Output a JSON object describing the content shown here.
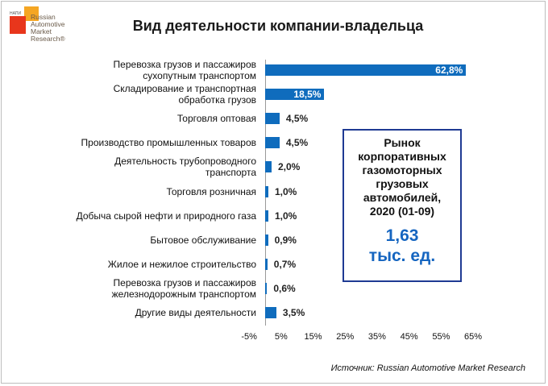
{
  "logo": {
    "small_text": "НАПИ",
    "brand_lines": [
      "Russian",
      "Automotive",
      "Market",
      "Research®"
    ]
  },
  "title": "Вид деятельности компании-владельца",
  "chart_data": {
    "type": "bar",
    "orientation": "horizontal",
    "title": "Вид деятельности компании-владельца",
    "categories": [
      "Перевозка грузов и пассажиров сухопутным транспортом",
      "Складирование и транспортная обработка грузов",
      "Торговля оптовая",
      "Производство промышленных товаров",
      "Деятельность трубопроводного транспорта",
      "Торговля розничная",
      "Добыча сырой нефти и природного газа",
      "Бытовое обслуживание",
      "Жилое и нежилое строительство",
      "Перевозка грузов и пассажиров железнодорожным транспортом",
      "Другие виды деятельности"
    ],
    "category_lines": [
      [
        "Перевозка грузов и пассажиров",
        "сухопутным транспортом"
      ],
      [
        "Складирование и транспортная",
        "обработка грузов"
      ],
      [
        "Торговля оптовая"
      ],
      [
        "Производство промышленных товаров"
      ],
      [
        "Деятельность трубопроводного",
        "транспорта"
      ],
      [
        "Торговля розничная"
      ],
      [
        "Добыча сырой нефти и природного газа"
      ],
      [
        "Бытовое обслуживание"
      ],
      [
        "Жилое и нежилое строительство"
      ],
      [
        "Перевозка грузов и пассажиров",
        "железнодорожным транспортом"
      ],
      [
        "Другие виды деятельности"
      ]
    ],
    "values": [
      62.8,
      18.5,
      4.5,
      4.5,
      2.0,
      1.0,
      1.0,
      0.9,
      0.7,
      0.6,
      3.5
    ],
    "value_labels": [
      "62,8%",
      "18,5%",
      "4,5%",
      "4,5%",
      "2,0%",
      "1,0%",
      "1,0%",
      "0,9%",
      "0,7%",
      "0,6%",
      "3,5%"
    ],
    "xlim": [
      -5,
      65
    ],
    "x_ticks": [
      "-5%",
      "5%",
      "15%",
      "25%",
      "35%",
      "45%",
      "55%",
      "65%"
    ],
    "x_tick_values": [
      -5,
      5,
      15,
      25,
      35,
      45,
      55,
      65
    ],
    "bar_color": "#0f6cbd",
    "grid": false
  },
  "callout": {
    "lines": [
      "Рынок",
      "корпоративных",
      "газомоторных",
      "грузовых",
      "автомобилей,",
      "2020 (01-09)"
    ],
    "value": "1,63",
    "unit": "тыс. ед."
  },
  "source": "Источник: Russian Automotive Market Research"
}
